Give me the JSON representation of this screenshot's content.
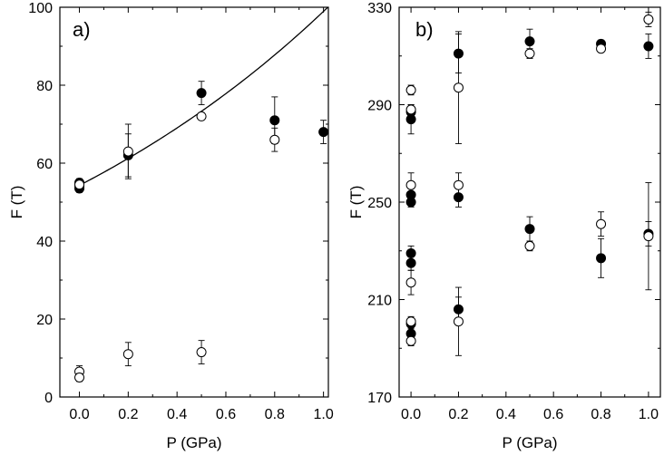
{
  "chart_data": [
    {
      "type": "scatter",
      "panel_label": "a)",
      "xlabel": "P (GPa)",
      "ylabel": "F (T)",
      "xlim": [
        -0.08,
        1.02
      ],
      "ylim": [
        0,
        100
      ],
      "xticks": [
        0.0,
        0.2,
        0.4,
        0.6,
        0.8,
        1.0
      ],
      "xtick_labels": [
        "0.0",
        "0.2",
        "0.4",
        "0.6",
        "0.8",
        "1.0"
      ],
      "yticks": [
        0,
        20,
        40,
        60,
        80,
        100
      ],
      "ytick_labels": [
        "0",
        "20",
        "40",
        "60",
        "80",
        "100"
      ],
      "series": [
        {
          "name": "filled",
          "marker": "filled-circle",
          "points": [
            {
              "x": 0.0,
              "y": 55,
              "err": 1
            },
            {
              "x": 0.0,
              "y": 54,
              "err": 1
            },
            {
              "x": 0.0,
              "y": 53.5,
              "err": 1
            },
            {
              "x": 0.2,
              "y": 62,
              "err": 5.5
            },
            {
              "x": 0.5,
              "y": 78,
              "err": 3
            },
            {
              "x": 0.8,
              "y": 71,
              "err": 6
            },
            {
              "x": 1.0,
              "y": 68,
              "err": 3
            }
          ]
        },
        {
          "name": "open",
          "marker": "open-circle",
          "points": [
            {
              "x": 0.0,
              "y": 54.5,
              "err": 1
            },
            {
              "x": 0.0,
              "y": 6.5,
              "err": 1.5
            },
            {
              "x": 0.0,
              "y": 5,
              "err": 1
            },
            {
              "x": 0.2,
              "y": 63,
              "err": 7
            },
            {
              "x": 0.2,
              "y": 11,
              "err": 3
            },
            {
              "x": 0.5,
              "y": 72,
              "err": 0
            },
            {
              "x": 0.5,
              "y": 11.5,
              "err": 3
            },
            {
              "x": 0.8,
              "y": 66,
              "err": 3
            }
          ]
        }
      ],
      "fit_curve": {
        "type": "exponential",
        "a": 54.3,
        "b": 0.6
      }
    },
    {
      "type": "scatter",
      "panel_label": "b)",
      "xlabel": "P (GPa)",
      "ylabel": "F (T)",
      "xlim": [
        -0.05,
        1.05
      ],
      "ylim": [
        170,
        330
      ],
      "xticks": [
        0.0,
        0.2,
        0.4,
        0.6,
        0.8,
        1.0
      ],
      "xtick_labels": [
        "0.0",
        "0.2",
        "0.4",
        "0.6",
        "0.8",
        "1.0"
      ],
      "yticks": [
        170,
        210,
        250,
        290,
        330
      ],
      "ytick_labels": [
        "170",
        "210",
        "250",
        "290",
        "330"
      ],
      "series": [
        {
          "name": "filled",
          "marker": "filled-circle",
          "points": [
            {
              "x": 0.0,
              "y": 287,
              "err": 3
            },
            {
              "x": 0.0,
              "y": 284,
              "err": 6
            },
            {
              "x": 0.0,
              "y": 253,
              "err": 3
            },
            {
              "x": 0.0,
              "y": 250,
              "err": 2
            },
            {
              "x": 0.0,
              "y": 229,
              "err": 3
            },
            {
              "x": 0.0,
              "y": 225,
              "err": 3
            },
            {
              "x": 0.0,
              "y": 200,
              "err": 2
            },
            {
              "x": 0.0,
              "y": 196,
              "err": 3
            },
            {
              "x": 0.2,
              "y": 311,
              "err": 8
            },
            {
              "x": 0.2,
              "y": 252,
              "err": 4
            },
            {
              "x": 0.2,
              "y": 206,
              "err": 5
            },
            {
              "x": 0.5,
              "y": 316,
              "err": 5
            },
            {
              "x": 0.5,
              "y": 239,
              "err": 5
            },
            {
              "x": 0.8,
              "y": 315,
              "err": 1.5
            },
            {
              "x": 0.8,
              "y": 227,
              "err": 8
            },
            {
              "x": 1.0,
              "y": 314,
              "err": 5
            },
            {
              "x": 1.0,
              "y": 237,
              "err": 5
            }
          ]
        },
        {
          "name": "open",
          "marker": "open-circle",
          "points": [
            {
              "x": 0.0,
              "y": 296,
              "err": 2
            },
            {
              "x": 0.0,
              "y": 288,
              "err": 2
            },
            {
              "x": 0.0,
              "y": 257,
              "err": 5
            },
            {
              "x": 0.0,
              "y": 217,
              "err": 5
            },
            {
              "x": 0.0,
              "y": 201,
              "err": 2
            },
            {
              "x": 0.0,
              "y": 193,
              "err": 2
            },
            {
              "x": 0.2,
              "y": 297,
              "err": 23
            },
            {
              "x": 0.2,
              "y": 257,
              "err": 5
            },
            {
              "x": 0.2,
              "y": 201,
              "err": 14
            },
            {
              "x": 0.5,
              "y": 311,
              "err": 2
            },
            {
              "x": 0.5,
              "y": 232,
              "err": 2
            },
            {
              "x": 0.8,
              "y": 313,
              "err": 1
            },
            {
              "x": 0.8,
              "y": 241,
              "err": 5
            },
            {
              "x": 1.0,
              "y": 325,
              "err": 3
            },
            {
              "x": 1.0,
              "y": 236,
              "err": 22
            }
          ]
        }
      ]
    }
  ]
}
